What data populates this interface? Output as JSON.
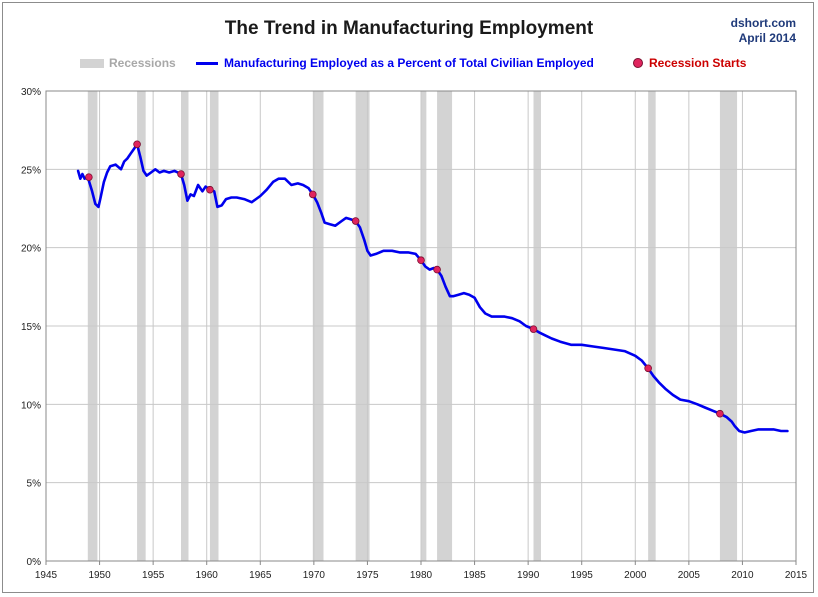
{
  "chart_data": {
    "type": "line",
    "title": "The Trend in Manufacturing Employment",
    "source": [
      "dshort.com",
      "April 2014"
    ],
    "legend": {
      "recessions": "Recessions",
      "series": "Manufacturing Employed as a Percent of Total Civilian Employed",
      "starts": "Recession Starts"
    },
    "xlim": [
      1945,
      2015
    ],
    "ylim": [
      0,
      30
    ],
    "x_ticks": [
      1945,
      1950,
      1955,
      1960,
      1965,
      1970,
      1975,
      1980,
      1985,
      1990,
      1995,
      2000,
      2005,
      2010,
      2015
    ],
    "y_ticks": [
      "0%",
      "5%",
      "10%",
      "15%",
      "20%",
      "25%",
      "30%"
    ],
    "grid": true,
    "colors": {
      "line": "#0000ee",
      "recession": "#d3d3d3",
      "start": "#e0245e",
      "grid": "#c8c8c8"
    },
    "recessions": [
      [
        1948.9,
        1949.8
      ],
      [
        1953.5,
        1954.3
      ],
      [
        1957.6,
        1958.3
      ],
      [
        1960.3,
        1961.1
      ],
      [
        1969.9,
        1970.9
      ],
      [
        1973.9,
        1975.2
      ],
      [
        1980.0,
        1980.5
      ],
      [
        1981.5,
        1982.9
      ],
      [
        1990.5,
        1991.2
      ],
      [
        2001.2,
        2001.9
      ],
      [
        2007.9,
        2009.5
      ]
    ],
    "series": [
      {
        "x": [
          1948.0,
          1948.2,
          1948.4,
          1948.6,
          1948.9,
          1949.3,
          1949.6,
          1949.9,
          1950.1,
          1950.4,
          1950.7,
          1951.0,
          1951.5,
          1952.0,
          1952.3,
          1952.6,
          1952.9,
          1953.2,
          1953.5,
          1953.8,
          1954.1,
          1954.4,
          1954.8,
          1955.2,
          1955.6,
          1956.0,
          1956.5,
          1957.0,
          1957.3,
          1957.6,
          1957.9,
          1958.2,
          1958.5,
          1958.8,
          1959.2,
          1959.6,
          1959.9,
          1960.3,
          1960.7,
          1961.0,
          1961.4,
          1961.8,
          1962.3,
          1962.8,
          1963.5,
          1964.2,
          1965.0,
          1965.6,
          1966.2,
          1966.7,
          1967.3,
          1967.9,
          1968.5,
          1969.0,
          1969.5,
          1969.9,
          1970.3,
          1970.7,
          1971.0,
          1971.5,
          1972.0,
          1972.6,
          1973.0,
          1973.5,
          1973.9,
          1974.3,
          1974.7,
          1975.0,
          1975.3,
          1975.8,
          1976.5,
          1977.3,
          1978.0,
          1978.8,
          1979.5,
          1980.0,
          1980.4,
          1980.8,
          1981.2,
          1981.5,
          1981.9,
          1982.3,
          1982.7,
          1983.0,
          1983.5,
          1984.0,
          1984.5,
          1985.0,
          1985.5,
          1986.0,
          1986.6,
          1987.2,
          1987.8,
          1988.5,
          1989.2,
          1989.8,
          1990.5,
          1991.0,
          1991.6,
          1992.2,
          1993.0,
          1994.0,
          1995.0,
          1996.0,
          1997.0,
          1998.0,
          1999.0,
          2000.0,
          2000.6,
          2001.2,
          2001.7,
          2002.2,
          2002.8,
          2003.5,
          2004.2,
          2005.0,
          2005.8,
          2006.5,
          2007.2,
          2007.9,
          2008.5,
          2009.0,
          2009.3,
          2009.7,
          2010.2,
          2010.8,
          2011.5,
          2012.2,
          2012.9,
          2013.6,
          2014.2
        ],
        "y": [
          24.9,
          24.4,
          24.7,
          24.4,
          24.5,
          23.6,
          22.8,
          22.6,
          23.2,
          24.2,
          24.8,
          25.2,
          25.3,
          25.0,
          25.5,
          25.7,
          26.0,
          26.3,
          26.6,
          25.8,
          24.9,
          24.6,
          24.8,
          25.0,
          24.8,
          24.9,
          24.8,
          24.9,
          24.8,
          24.7,
          24.0,
          23.0,
          23.4,
          23.3,
          24.0,
          23.6,
          23.9,
          23.7,
          23.6,
          22.6,
          22.7,
          23.1,
          23.2,
          23.2,
          23.1,
          22.9,
          23.3,
          23.7,
          24.2,
          24.4,
          24.4,
          24.0,
          24.1,
          24.0,
          23.8,
          23.4,
          22.9,
          22.2,
          21.6,
          21.5,
          21.4,
          21.7,
          21.9,
          21.8,
          21.7,
          21.3,
          20.5,
          19.8,
          19.5,
          19.6,
          19.8,
          19.8,
          19.7,
          19.7,
          19.6,
          19.2,
          18.8,
          18.6,
          18.7,
          18.6,
          18.2,
          17.5,
          16.9,
          16.9,
          17.0,
          17.1,
          17.0,
          16.8,
          16.2,
          15.8,
          15.6,
          15.6,
          15.6,
          15.5,
          15.3,
          15.0,
          14.8,
          14.6,
          14.4,
          14.2,
          14.0,
          13.8,
          13.8,
          13.7,
          13.6,
          13.5,
          13.4,
          13.1,
          12.8,
          12.3,
          11.8,
          11.4,
          11.0,
          10.6,
          10.3,
          10.2,
          10.0,
          9.8,
          9.6,
          9.4,
          9.2,
          8.9,
          8.6,
          8.3,
          8.2,
          8.3,
          8.4,
          8.4,
          8.4,
          8.3,
          8.3
        ]
      }
    ],
    "recession_starts": [
      [
        1949.0,
        24.5
      ],
      [
        1953.5,
        26.6
      ],
      [
        1957.6,
        24.7
      ],
      [
        1960.3,
        23.7
      ],
      [
        1969.9,
        23.4
      ],
      [
        1973.9,
        21.7
      ],
      [
        1980.0,
        19.2
      ],
      [
        1981.5,
        18.6
      ],
      [
        1990.5,
        14.8
      ],
      [
        2001.2,
        12.3
      ],
      [
        2007.9,
        9.4
      ]
    ]
  }
}
